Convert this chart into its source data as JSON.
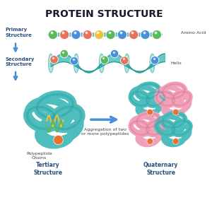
{
  "title": "PROTEIN STRUCTURE",
  "title_fontsize": 10,
  "title_fontweight": "bold",
  "title_color": "#1a1a2e",
  "bg_color": "#ffffff",
  "labels": {
    "primary": "Primary\nStructure",
    "secondary": "Secondary\nStructure",
    "tertiary": "Tertiary\nStructure",
    "quaternary": "Quaternary\nStructure",
    "amino_acid": "Amino Acid",
    "helix": "Helix",
    "polypeptide": "Polypeptide\nChains",
    "aggregation": "Aggregation of two\nor more polypeptides"
  },
  "bead_colors_primary": [
    "#5cb85c",
    "#e8735a",
    "#4a90d9",
    "#e8735a",
    "#f0c040",
    "#5cb85c",
    "#4a90d9",
    "#e8735a",
    "#4a90d9",
    "#5cb85c"
  ],
  "bead_colors_helix": [
    "#e8735a",
    "#5cb85c",
    "#4a90d9",
    "#f0c040",
    "#e8735a",
    "#5cb85c",
    "#4a90d9",
    "#e8735a",
    "#f0c040",
    "#5cb85c",
    "#4a90d9"
  ],
  "teal": "#4dbdbd",
  "teal_dark": "#2a9d9d",
  "teal_light": "#7dd8d8",
  "pink": "#f0a0b8",
  "pink_dark": "#d9708a",
  "orange": "#e87030",
  "arrow_color": "#4a90d9",
  "label_color": "#2a5080",
  "note_color": "#444444",
  "label_fs": 5.0,
  "note_fs": 4.5,
  "struct_fs": 5.5
}
